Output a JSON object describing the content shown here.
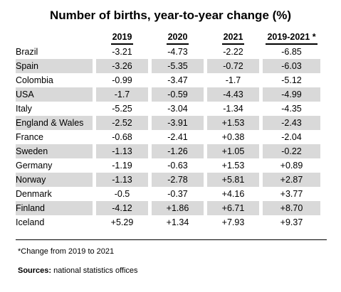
{
  "title": "Number of births, year-to-year change (%)",
  "columns": [
    "2019",
    "2020",
    "2021",
    "2019-2021 *"
  ],
  "rows": [
    {
      "country": "Brazil",
      "values": [
        "-3.21",
        "-4.73",
        "-2.22",
        "-6.85"
      ]
    },
    {
      "country": "Spain",
      "values": [
        "-3.26",
        "-5.35",
        "-0.72",
        "-6.03"
      ]
    },
    {
      "country": "Colombia",
      "values": [
        "-0.99",
        "-3.47",
        "-1.7",
        "-5.12"
      ]
    },
    {
      "country": "USA",
      "values": [
        "-1.7",
        "-0.59",
        "-4.43",
        "-4.99"
      ]
    },
    {
      "country": "Italy",
      "values": [
        "-5.25",
        "-3.04",
        "-1.34",
        "-4.35"
      ]
    },
    {
      "country": "England & Wales",
      "values": [
        "-2.52",
        "-3.91",
        "+1.53",
        "-2.43"
      ]
    },
    {
      "country": "France",
      "values": [
        "-0.68",
        "-2.41",
        "+0.38",
        "-2.04"
      ]
    },
    {
      "country": "Sweden",
      "values": [
        "-1.13",
        "-1.26",
        "+1.05",
        "-0.22"
      ]
    },
    {
      "country": "Germany",
      "values": [
        "-1.19",
        "-0.63",
        "+1.53",
        "+0.89"
      ]
    },
    {
      "country": "Norway",
      "values": [
        "-1.13",
        "-2.78",
        "+5.81",
        "+2.87"
      ]
    },
    {
      "country": "Denmark",
      "values": [
        "-0.5",
        "-0.37",
        "+4.16",
        "+3.77"
      ]
    },
    {
      "country": "Finland",
      "values": [
        "-4.12",
        "+1.86",
        "+6.71",
        "+8.70"
      ]
    },
    {
      "country": "Iceland",
      "values": [
        "+5.29",
        "+1.34",
        "+7.93",
        "+9.37"
      ]
    }
  ],
  "footnote": "*Change from 2019 to 2021",
  "sources_label": "Sources:",
  "sources_text": " national statistics offices",
  "colors": {
    "shade": "#d9d9d9"
  }
}
